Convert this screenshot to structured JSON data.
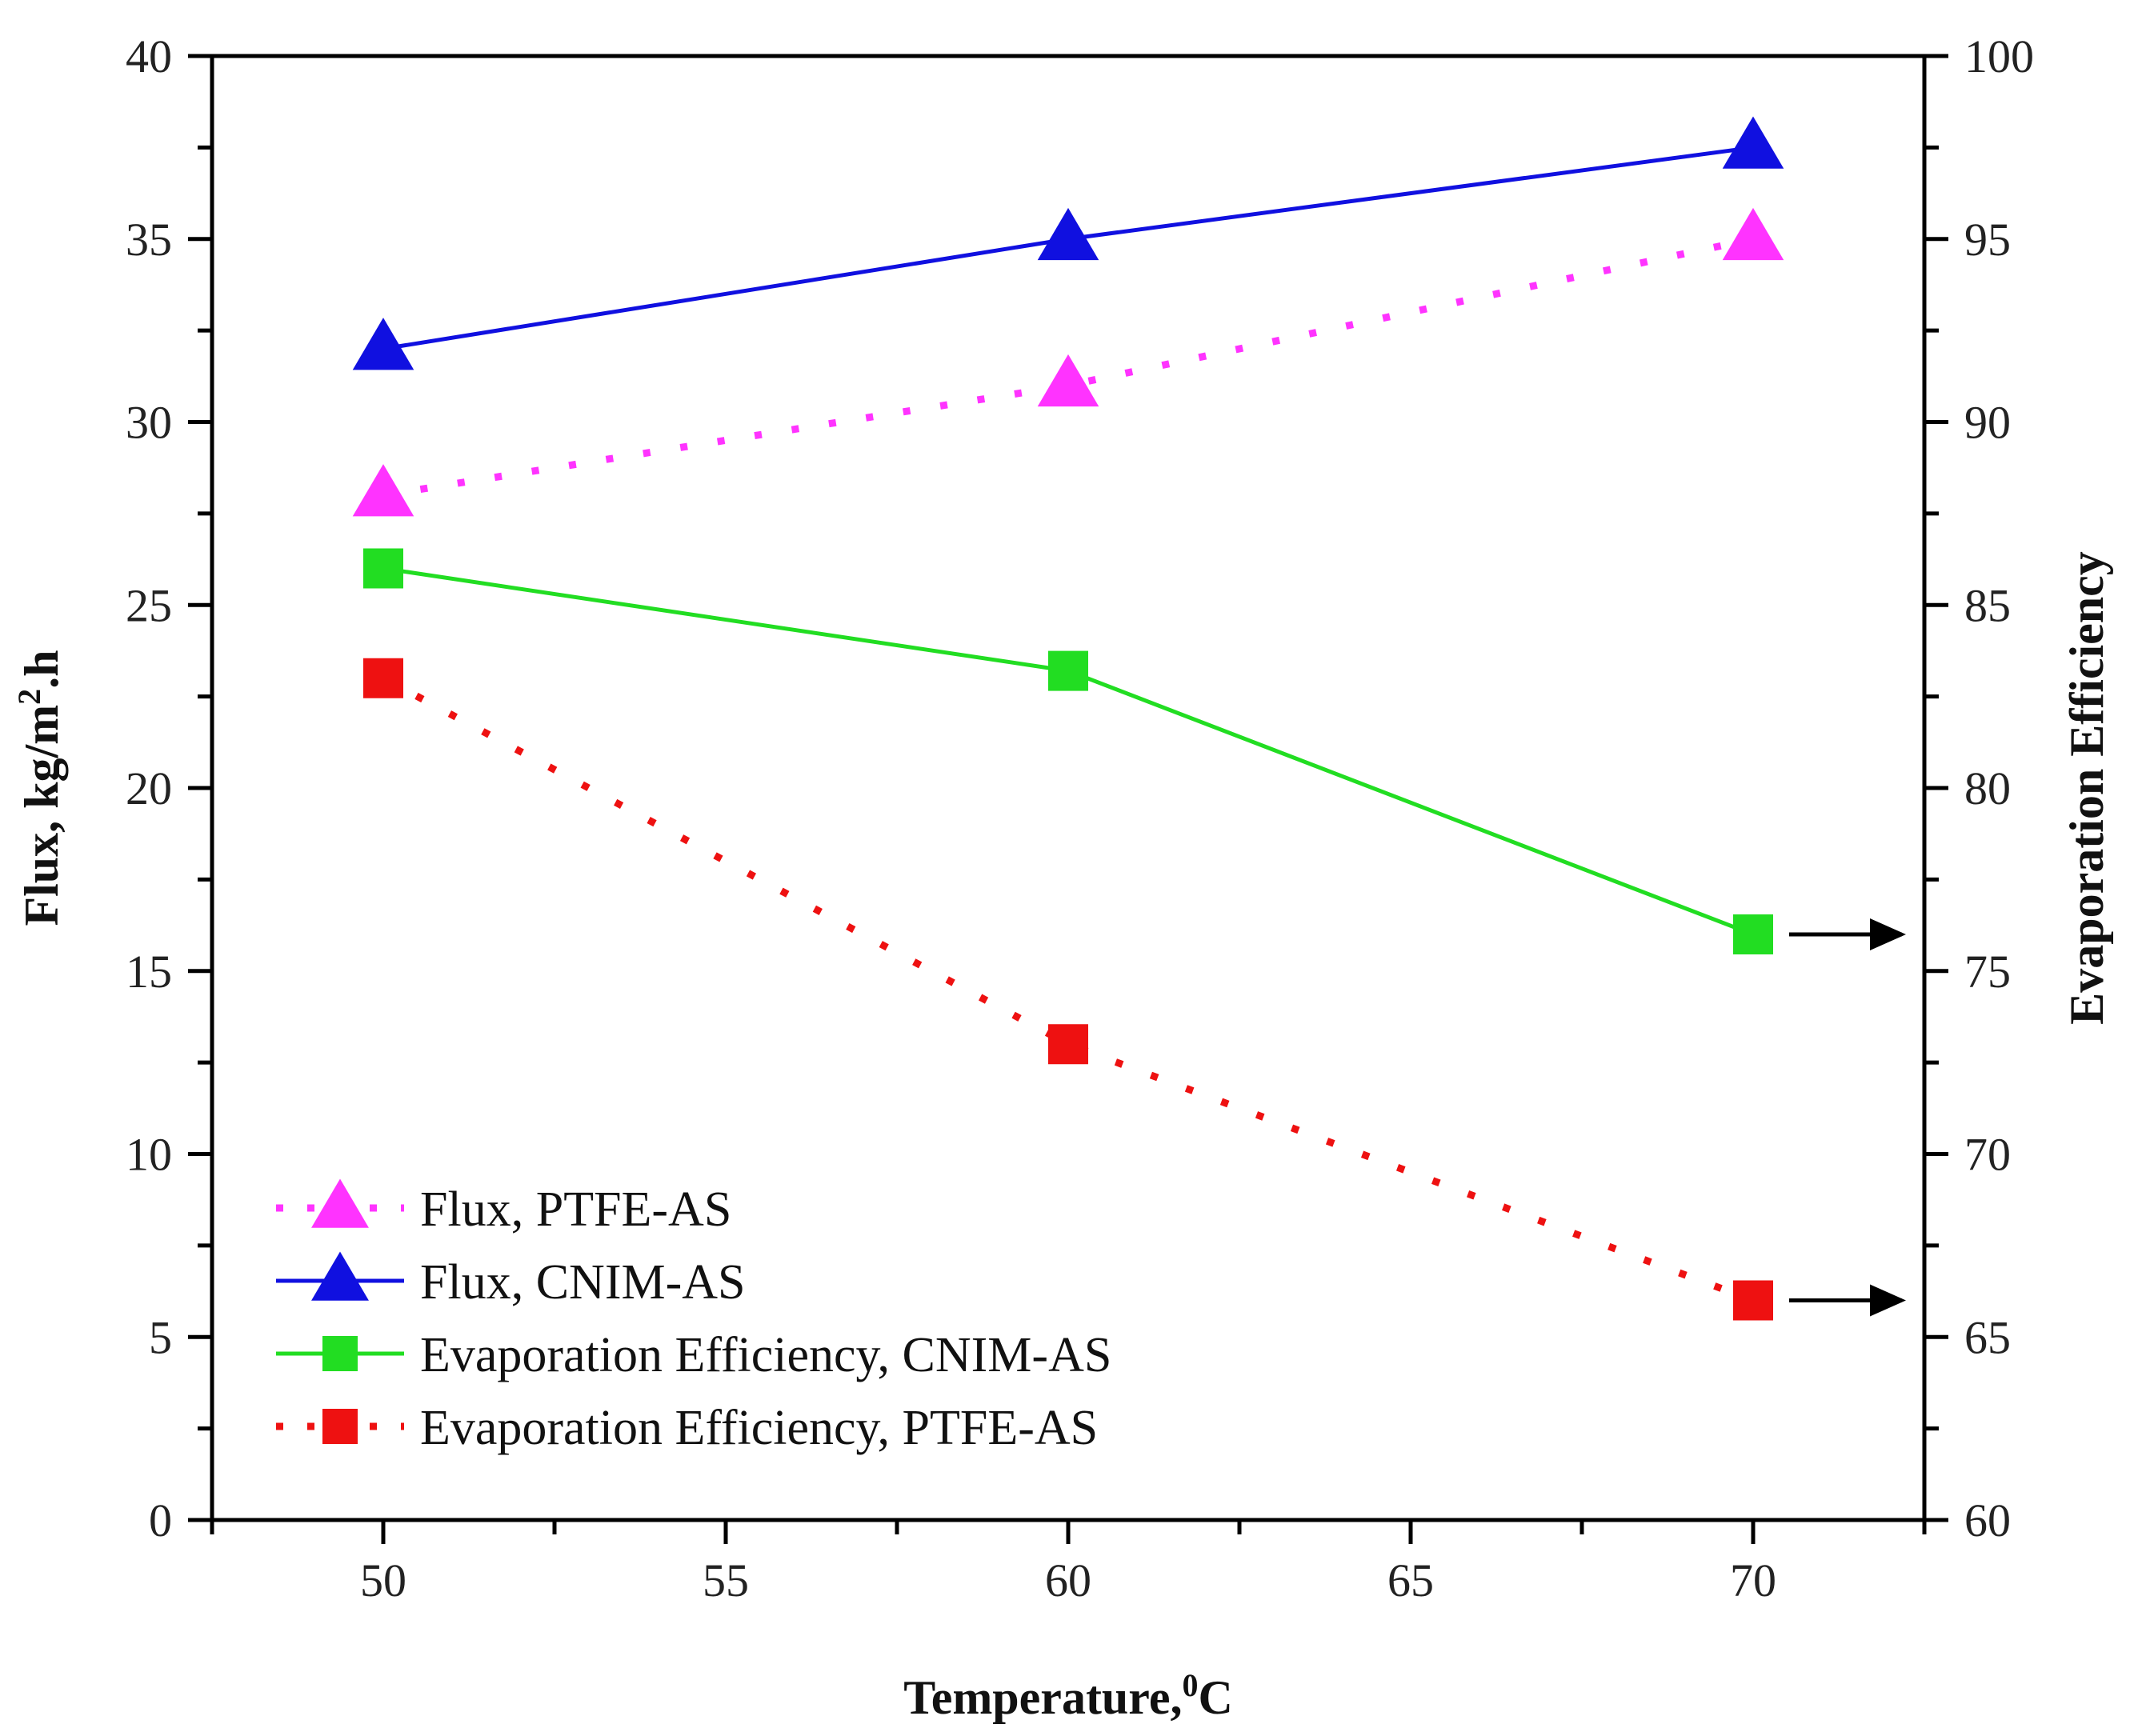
{
  "chart_data": {
    "type": "line",
    "title": "",
    "xlabel": "Temperature,",
    "xlabel_sup": "0",
    "xlabel_unit": "C",
    "ylabel_left": {
      "pre": "Flux, kg/m",
      "sup": "2",
      "post": ".h"
    },
    "ylabel_right": "Evaporation Efficiency",
    "xlim": [
      47.5,
      72.5
    ],
    "ylim_left": [
      0,
      40
    ],
    "ylim_right": [
      60,
      100
    ],
    "x_ticks": [
      "50",
      "55",
      "60",
      "65",
      "70"
    ],
    "y_left_ticks": [
      "0",
      "5",
      "10",
      "15",
      "20",
      "25",
      "30",
      "35",
      "40"
    ],
    "y_right_ticks": [
      "60",
      "65",
      "70",
      "75",
      "80",
      "85",
      "90",
      "95",
      "100"
    ],
    "x": [
      50,
      60,
      70
    ],
    "series": [
      {
        "name": "Flux, PTFE-AS",
        "axis": "left",
        "marker": "triangle",
        "line": "dotted",
        "color": "#ff33ff",
        "values": [
          28,
          31,
          35
        ]
      },
      {
        "name": "Flux, CNIM-AS",
        "axis": "left",
        "marker": "triangle",
        "line": "solid",
        "color": "#1010e0",
        "values": [
          32,
          35,
          37.5
        ]
      },
      {
        "name": "Evaporation Efficiency, CNIM-AS",
        "axis": "right",
        "marker": "square",
        "line": "solid",
        "color": "#22dd22",
        "values": [
          86,
          83.2,
          76
        ]
      },
      {
        "name": "Evaporation Efficiency, PTFE-AS",
        "axis": "right",
        "marker": "square",
        "line": "dotted",
        "color": "#ee1111",
        "values": [
          83,
          73,
          66
        ]
      }
    ],
    "annotations": [
      {
        "type": "arrow",
        "series_index": 2,
        "point_index": 2,
        "direction": "right-axis"
      },
      {
        "type": "arrow",
        "series_index": 3,
        "point_index": 2,
        "direction": "right-axis"
      }
    ],
    "legend_position": "bottom-left",
    "grid": false
  }
}
